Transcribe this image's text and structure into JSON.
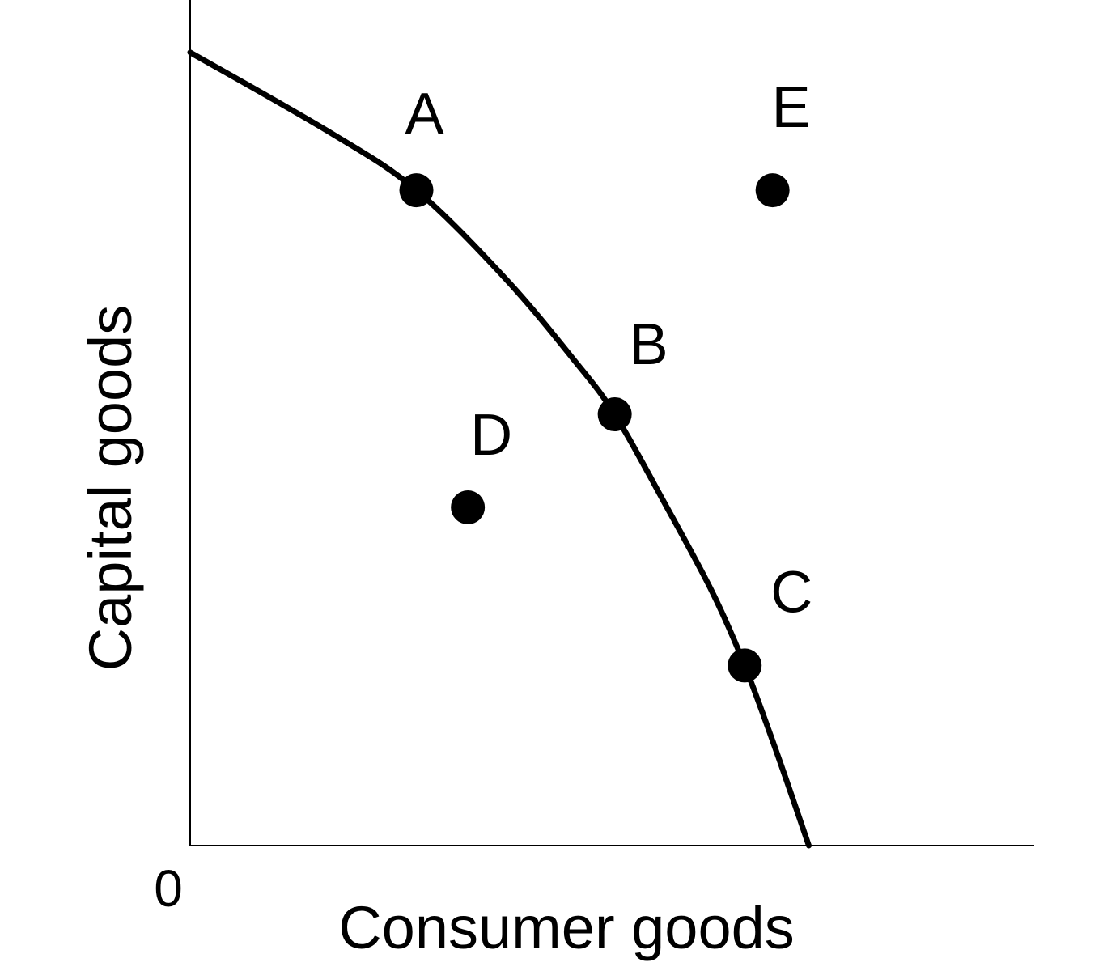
{
  "chart_data": {
    "type": "line",
    "title": "",
    "xlabel": "Consumer goods",
    "ylabel": "Capital goods",
    "origin_label": "0",
    "xlim": [
      0,
      100
    ],
    "ylim": [
      0,
      100
    ],
    "grid": false,
    "legend": "none",
    "colors": {
      "curve": "#000000",
      "points": "#000000",
      "axes": "#000000",
      "background": "#ffffff"
    },
    "curve": {
      "x": [
        0,
        16.8,
        26.8,
        37.4,
        45.5,
        50.3,
        56.1,
        61.8,
        65.7,
        69.5,
        73.3
      ],
      "y": [
        93.8,
        84.2,
        77.5,
        67.0,
        57.4,
        51.0,
        40.7,
        30.1,
        21.3,
        11.0,
        0
      ]
    },
    "points": [
      {
        "label": "A",
        "x": 26.8,
        "y": 77.5
      },
      {
        "label": "B",
        "x": 50.3,
        "y": 51.0
      },
      {
        "label": "C",
        "x": 65.7,
        "y": 21.3
      },
      {
        "label": "D",
        "x": 32.9,
        "y": 40.0
      },
      {
        "label": "E",
        "x": 69.0,
        "y": 77.5
      }
    ]
  }
}
